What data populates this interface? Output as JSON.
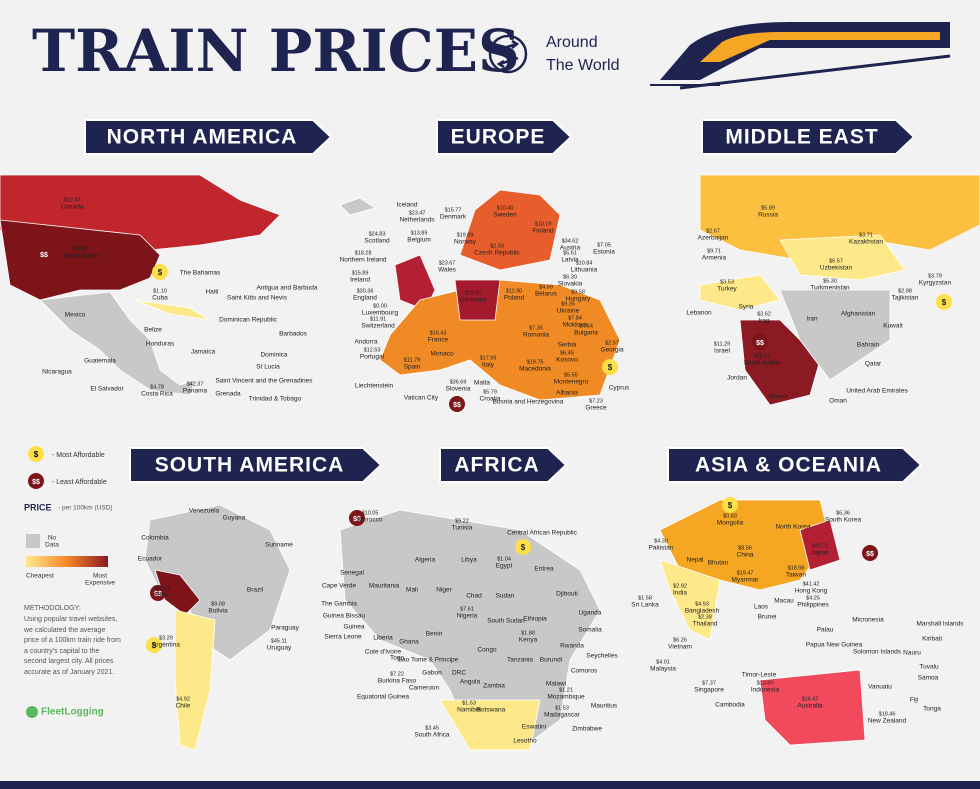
{
  "header": {
    "title": "TRAIN PRICES",
    "subtitle": [
      "Around",
      "The World"
    ]
  },
  "legend": {
    "most_affordable": "- Most Affordable",
    "least_affordable": "- Least Affordable",
    "price": "PRICE",
    "unit": "- per 100km (USD)",
    "no_data": [
      "No",
      "Data"
    ],
    "cheapest": "Cheapest",
    "most_expensive": [
      "Most",
      "Expensive"
    ]
  },
  "methodology": {
    "title": "METHODOLOGY:",
    "text": "Using popular travel websites, we calculated the average price of a 100km train ride from a country's capital to the second largest city. All prices accurate as of January 2021."
  },
  "logo": "FleetLogging",
  "regions": [
    {
      "title": "NORTH AMERICA",
      "labels": [
        {
          "name": "Canada",
          "price": "$22.47"
        },
        {
          "name": "United States",
          "price": "$60.00"
        },
        {
          "name": "Mexico"
        },
        {
          "name": "Cuba",
          "price": "$1.10"
        },
        {
          "name": "The Bahamas"
        },
        {
          "name": "Haiti"
        },
        {
          "name": "Saint Kitts and Nevis"
        },
        {
          "name": "Antigua and Barbuda"
        },
        {
          "name": "Dominican Republic"
        },
        {
          "name": "Belize"
        },
        {
          "name": "Honduras"
        },
        {
          "name": "Jamaica"
        },
        {
          "name": "Barbados"
        },
        {
          "name": "Guatemala"
        },
        {
          "name": "Dominica"
        },
        {
          "name": "St Lucia"
        },
        {
          "name": "Nicaragua"
        },
        {
          "name": "Saint Vincent and the Grenadines"
        },
        {
          "name": "El Salvador"
        },
        {
          "name": "Costa Rica",
          "price": "$4.78"
        },
        {
          "name": "Panama",
          "price": "$42.37"
        },
        {
          "name": "Grenada"
        },
        {
          "name": "Trinidad & Tobago"
        }
      ]
    },
    {
      "title": "EUROPE",
      "labels": [
        {
          "name": "Iceland"
        },
        {
          "name": "Sweden",
          "price": "$10.40"
        },
        {
          "name": "Finland",
          "price": "$10.19"
        },
        {
          "name": "Norway",
          "price": "$19.99"
        },
        {
          "name": "Estonia",
          "price": "$7.05"
        },
        {
          "name": "Denmark",
          "price": "$15.77"
        },
        {
          "name": "Netherlands",
          "price": "$23.47"
        },
        {
          "name": "Scotland",
          "price": "$24.83"
        },
        {
          "name": "Belgium",
          "price": "$13.89"
        },
        {
          "name": "Latvia",
          "price": "$5.61"
        },
        {
          "name": "Lithuania",
          "price": "$10.84"
        },
        {
          "name": "Northern Ireland",
          "price": "$18.28"
        },
        {
          "name": "Austria",
          "price": "$34.62"
        },
        {
          "name": "Czech Republic",
          "price": "$2.93"
        },
        {
          "name": "Belarus",
          "price": "$4.69"
        },
        {
          "name": "Slovakia",
          "price": "$6.30"
        },
        {
          "name": "Ireland",
          "price": "$15.89"
        },
        {
          "name": "Wales",
          "price": "$23.67"
        },
        {
          "name": "England",
          "price": "$30.36"
        },
        {
          "name": "Poland",
          "price": "$11.90"
        },
        {
          "name": "Hungary",
          "price": "$9.58"
        },
        {
          "name": "Ukraine",
          "price": "$9.35"
        },
        {
          "name": "Luxembourg",
          "price": "$0.00"
        },
        {
          "name": "Switzerland",
          "price": "$11.91"
        },
        {
          "name": "Germany",
          "price": "$22.41"
        },
        {
          "name": "France",
          "price": "$16.43"
        },
        {
          "name": "Moldova",
          "price": "$7.84"
        },
        {
          "name": "Romania",
          "price": "$7.35"
        },
        {
          "name": "Bulgaria",
          "price": "$4.64"
        },
        {
          "name": "Georgia",
          "price": "$2.57"
        },
        {
          "name": "Andorra"
        },
        {
          "name": "Monaco"
        },
        {
          "name": "Serbia"
        },
        {
          "name": "Kosovo",
          "price": "$6.45"
        },
        {
          "name": "Portugal",
          "price": "$12.53"
        },
        {
          "name": "Spain",
          "price": "$11.79"
        },
        {
          "name": "Italy",
          "price": "$17.99"
        },
        {
          "name": "Macedonia",
          "price": "$19.75"
        },
        {
          "name": "Montenegro",
          "price": "$5.55"
        },
        {
          "name": "Cyprus"
        },
        {
          "name": "Liechtenstein"
        },
        {
          "name": "Slovenia",
          "price": "$36.69"
        },
        {
          "name": "Malta"
        },
        {
          "name": "Croatia",
          "price": "$5.79"
        },
        {
          "name": "Albania"
        },
        {
          "name": "Vatican City"
        },
        {
          "name": "Bosnia and Herzegovina"
        },
        {
          "name": "Greece",
          "price": "$7.23"
        }
      ]
    },
    {
      "title": "MIDDLE EAST",
      "labels": [
        {
          "name": "Russia",
          "price": "$5.89"
        },
        {
          "name": "Azerbaijan",
          "price": "$2.67"
        },
        {
          "name": "Kazakhstan",
          "price": "$3.71"
        },
        {
          "name": "Armenia",
          "price": "$9.71"
        },
        {
          "name": "Uzbekistan",
          "price": "$6.57"
        },
        {
          "name": "Kyrgyzstan",
          "price": "$3.79"
        },
        {
          "name": "Turkey",
          "price": "$3.53"
        },
        {
          "name": "Turkmenistan",
          "price": "$5.30"
        },
        {
          "name": "Tajikistan",
          "price": "$2.98"
        },
        {
          "name": "Lebanon"
        },
        {
          "name": "Syria"
        },
        {
          "name": "Iraq",
          "price": "$3.62"
        },
        {
          "name": "Iran"
        },
        {
          "name": "Afghanistan"
        },
        {
          "name": "Kuwait"
        },
        {
          "name": "Israel",
          "price": "$11.29"
        },
        {
          "name": "Bahrain"
        },
        {
          "name": "Qatar"
        },
        {
          "name": "Saudi Arabia",
          "price": "$58.21"
        },
        {
          "name": "Jordan"
        },
        {
          "name": "United Arab Emirates"
        },
        {
          "name": "Yemen"
        },
        {
          "name": "Oman"
        }
      ]
    },
    {
      "title": "SOUTH AMERICA",
      "labels": [
        {
          "name": "Venezuela"
        },
        {
          "name": "Guyana"
        },
        {
          "name": "Colombia"
        },
        {
          "name": "Suriname"
        },
        {
          "name": "Ecuador"
        },
        {
          "name": "Brazil"
        },
        {
          "name": "Peru",
          "price": "$69.14"
        },
        {
          "name": "Bolivia",
          "price": "$9.08"
        },
        {
          "name": "Paraguay"
        },
        {
          "name": "Argentina",
          "price": "$3.29"
        },
        {
          "name": "Uruguay",
          "price": "$45.11"
        },
        {
          "name": "Chile",
          "price": "$4.92"
        }
      ]
    },
    {
      "title": "AFRICA",
      "labels": [
        {
          "name": "Morocco",
          "price": "$10.05"
        },
        {
          "name": "Tunisia",
          "price": "$9.22"
        },
        {
          "name": "Central African Republic"
        },
        {
          "name": "Algeria"
        },
        {
          "name": "Libya"
        },
        {
          "name": "Egypt",
          "price": "$1.04"
        },
        {
          "name": "Senegal"
        },
        {
          "name": "Eritrea"
        },
        {
          "name": "Cape Verde"
        },
        {
          "name": "Mauritania"
        },
        {
          "name": "Mali"
        },
        {
          "name": "Niger"
        },
        {
          "name": "Chad"
        },
        {
          "name": "Sudan"
        },
        {
          "name": "Djibouti"
        },
        {
          "name": "The Gambia"
        },
        {
          "name": "Guinea Bissau"
        },
        {
          "name": "Guinea"
        },
        {
          "name": "Sierra Leone"
        },
        {
          "name": "Liberia"
        },
        {
          "name": "Ghana"
        },
        {
          "name": "Benin"
        },
        {
          "name": "Nigeria",
          "price": "$7.61"
        },
        {
          "name": "South Sudan"
        },
        {
          "name": "Ethiopia"
        },
        {
          "name": "Uganda"
        },
        {
          "name": "Somalia"
        },
        {
          "name": "Cote d'Ivoire"
        },
        {
          "name": "Togo"
        },
        {
          "name": "Sao Tome & Principe"
        },
        {
          "name": "Kenya",
          "price": "$1.88"
        },
        {
          "name": "Rwanda"
        },
        {
          "name": "Burkina Faso",
          "price": "$7.22"
        },
        {
          "name": "Congo"
        },
        {
          "name": "Tanzania"
        },
        {
          "name": "Burundi"
        },
        {
          "name": "Seychelles"
        },
        {
          "name": "Gabon"
        },
        {
          "name": "DRC"
        },
        {
          "name": "Comoros"
        },
        {
          "name": "Cameroon"
        },
        {
          "name": "Malawi"
        },
        {
          "name": "Angola"
        },
        {
          "name": "Zambia"
        },
        {
          "name": "Mozambique",
          "price": "$1.21"
        },
        {
          "name": "Equatorial Guinea"
        },
        {
          "name": "Mauritius"
        },
        {
          "name": "Namibia",
          "price": "$1.53"
        },
        {
          "name": "Botswana"
        },
        {
          "name": "Madagascar",
          "price": "$1.53"
        },
        {
          "name": "Zimbabwe"
        },
        {
          "name": "Eswatini"
        },
        {
          "name": "South Africa",
          "price": "$3.45"
        },
        {
          "name": "Lesotho"
        }
      ]
    },
    {
      "title": "ASIA & OCEANIA",
      "labels": [
        {
          "name": "Mongolia",
          "price": "$0.83"
        },
        {
          "name": "North Korea"
        },
        {
          "name": "South Korea",
          "price": "$6.36"
        },
        {
          "name": "Pakistan",
          "price": "$4.30"
        },
        {
          "name": "China",
          "price": "$8.56"
        },
        {
          "name": "Japan",
          "price": "$20.73"
        },
        {
          "name": "Nepal"
        },
        {
          "name": "Bhutan"
        },
        {
          "name": "Taiwan",
          "price": "$18.98"
        },
        {
          "name": "India",
          "price": "$2.92"
        },
        {
          "name": "Myanmar",
          "price": "$19.47"
        },
        {
          "name": "Hong Kong",
          "price": "$41.42"
        },
        {
          "name": "Sri Lanka",
          "price": "$1.58"
        },
        {
          "name": "Bangladesh",
          "price": "$4.93"
        },
        {
          "name": "Macau"
        },
        {
          "name": "Philippines",
          "price": "$4.25"
        },
        {
          "name": "Thailand",
          "price": "$2.38"
        },
        {
          "name": "Laos"
        },
        {
          "name": "Micronesia"
        },
        {
          "name": "Marshall Islands"
        },
        {
          "name": "Brunei"
        },
        {
          "name": "Palau"
        },
        {
          "name": "Kiribati"
        },
        {
          "name": "Vietnam",
          "price": "$6.26"
        },
        {
          "name": "Papua New Guinea"
        },
        {
          "name": "Solomon Islands"
        },
        {
          "name": "Nauru"
        },
        {
          "name": "Malaysia",
          "price": "$4.01"
        },
        {
          "name": "Tuvalu"
        },
        {
          "name": "Timor-Leste"
        },
        {
          "name": "Singapore",
          "price": "$7.37"
        },
        {
          "name": "Cambodia"
        },
        {
          "name": "Indonesia",
          "price": "$13.80"
        },
        {
          "name": "Samoa"
        },
        {
          "name": "Vanuatu"
        },
        {
          "name": "Fiji"
        },
        {
          "name": "Australia",
          "price": "$16.47"
        },
        {
          "name": "Tonga"
        },
        {
          "name": "New Zealand",
          "price": "$18.46"
        }
      ]
    }
  ]
}
